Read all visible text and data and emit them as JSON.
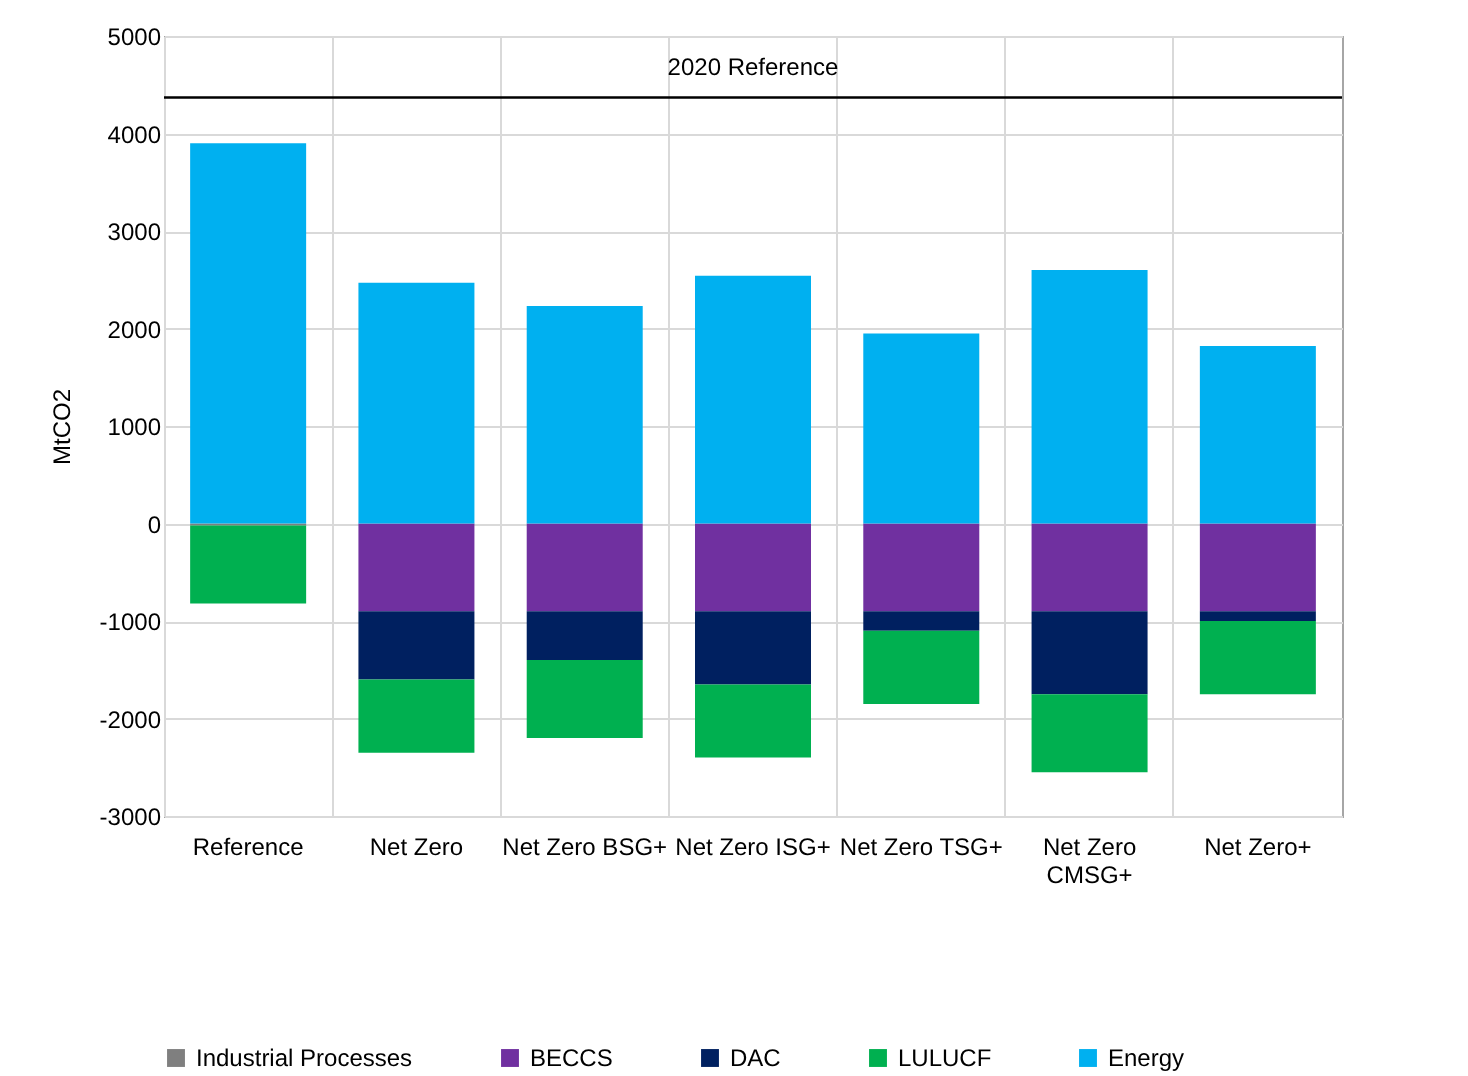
{
  "chart_data": {
    "type": "bar",
    "stacked": true,
    "ylabel": "MtCO2",
    "categories": [
      "Reference",
      "Net Zero",
      "Net Zero BSG+",
      "Net Zero ISG+",
      "Net Zero TSG+",
      "Net Zero CMSG+",
      "Net Zero+"
    ],
    "series": [
      {
        "name": "Industrial Processes",
        "color": "#7f7f7f",
        "values": [
          -20,
          0,
          0,
          0,
          0,
          0,
          0
        ]
      },
      {
        "name": "BECCS",
        "color": "#7030a0",
        "values": [
          0,
          -900,
          -900,
          -900,
          -900,
          -900,
          -900
        ]
      },
      {
        "name": "DAC",
        "color": "#002060",
        "values": [
          0,
          -700,
          -500,
          -750,
          -200,
          -850,
          -100
        ]
      },
      {
        "name": "LULUCF",
        "color": "#00b050",
        "values": [
          -800,
          -750,
          -800,
          -750,
          -750,
          -800,
          -750
        ]
      },
      {
        "name": "Energy",
        "color": "#00b0f0",
        "values": [
          3900,
          2470,
          2230,
          2540,
          1950,
          2600,
          1820
        ]
      }
    ],
    "ylim": [
      -3000,
      5000
    ],
    "yticks": [
      {
        "value": -3000,
        "label": "-3000"
      },
      {
        "value": -2000,
        "label": "-2000"
      },
      {
        "value": -1000,
        "label": "-1000"
      },
      0,
      {
        "value": 1000,
        "label": "1000"
      },
      {
        "value": 2000,
        "label": "2000"
      },
      {
        "value": 3000,
        "label": "3000"
      },
      {
        "value": 4000,
        "label": "4000"
      },
      {
        "value": 5000,
        "label": "5000"
      }
    ],
    "grid": true,
    "legend": "bottom",
    "ref_lines": [
      {
        "axis": "y",
        "value": 4370,
        "label": "2020 Reference",
        "color": "#000000"
      }
    ]
  }
}
